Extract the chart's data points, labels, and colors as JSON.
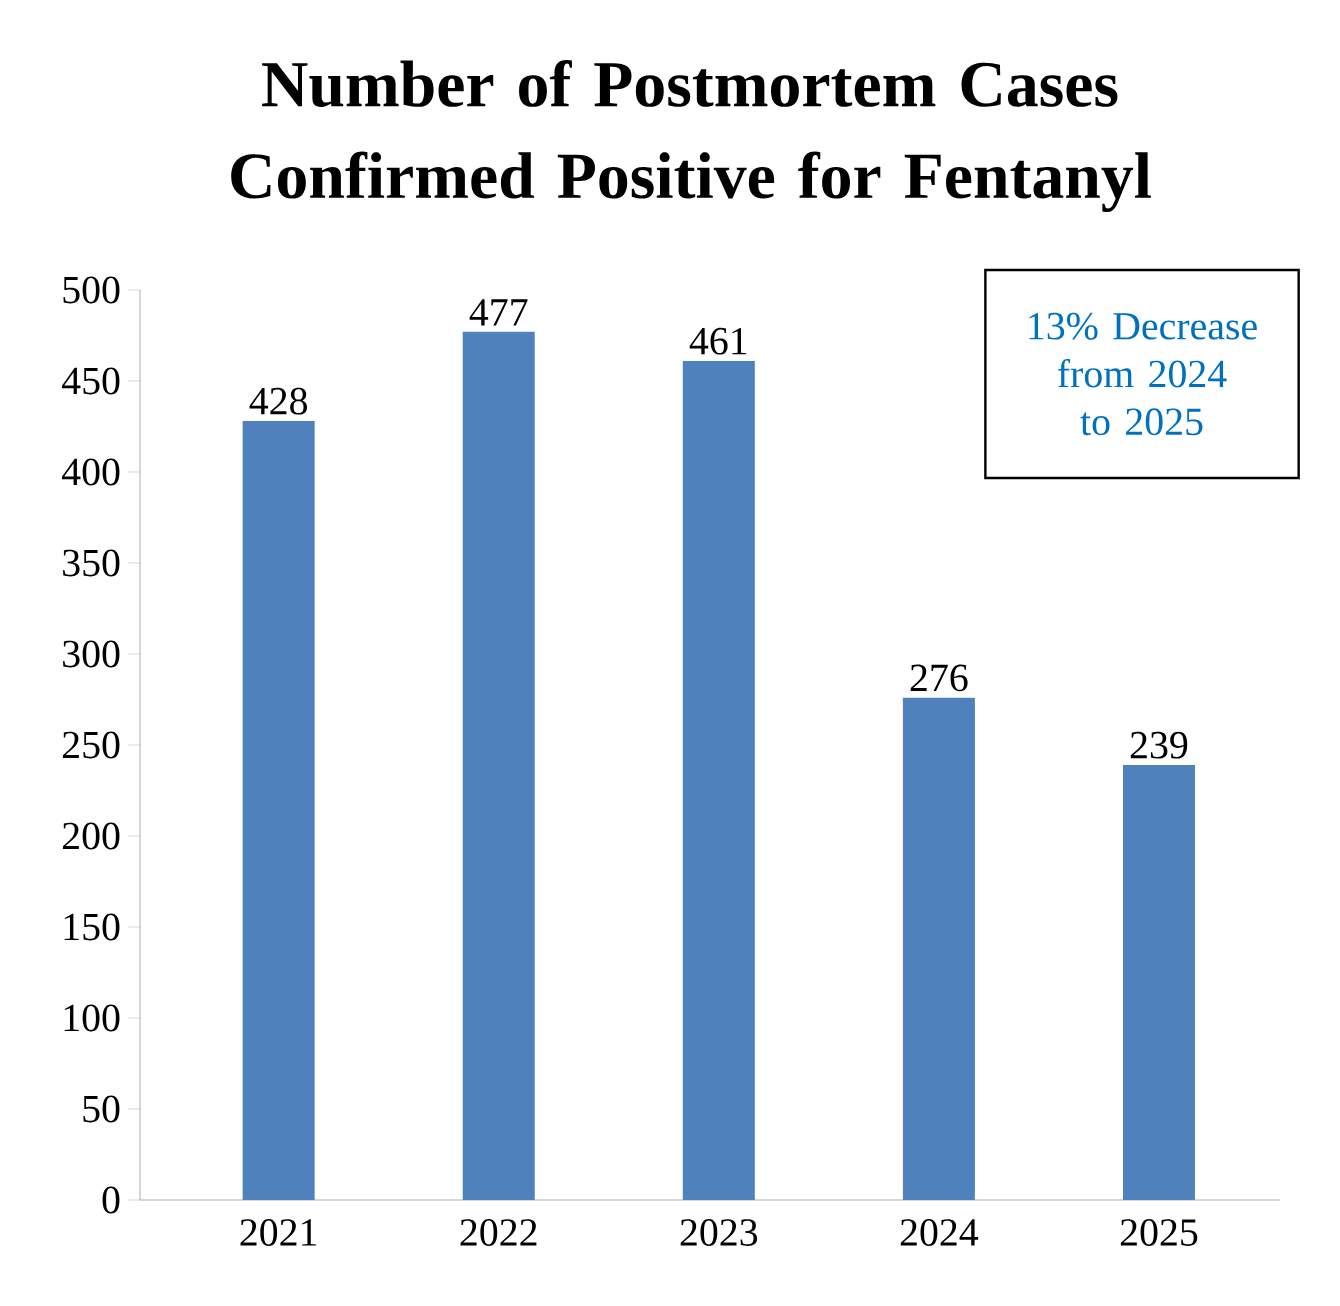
{
  "chart_data": {
    "type": "bar",
    "title": "Number of Postmortem Cases Confirmed Positive for Fentanyl",
    "categories": [
      "2021",
      "2022",
      "2023",
      "2024",
      "2025"
    ],
    "values": [
      428,
      477,
      461,
      276,
      239
    ],
    "color": "#4f81bd",
    "ylim": [
      0,
      500
    ],
    "yticks": [
      0,
      50,
      100,
      150,
      200,
      250,
      300,
      350,
      400,
      450,
      500
    ],
    "data_labels": true,
    "annotations": [
      "13% Decrease from 2024 to 2025"
    ]
  }
}
